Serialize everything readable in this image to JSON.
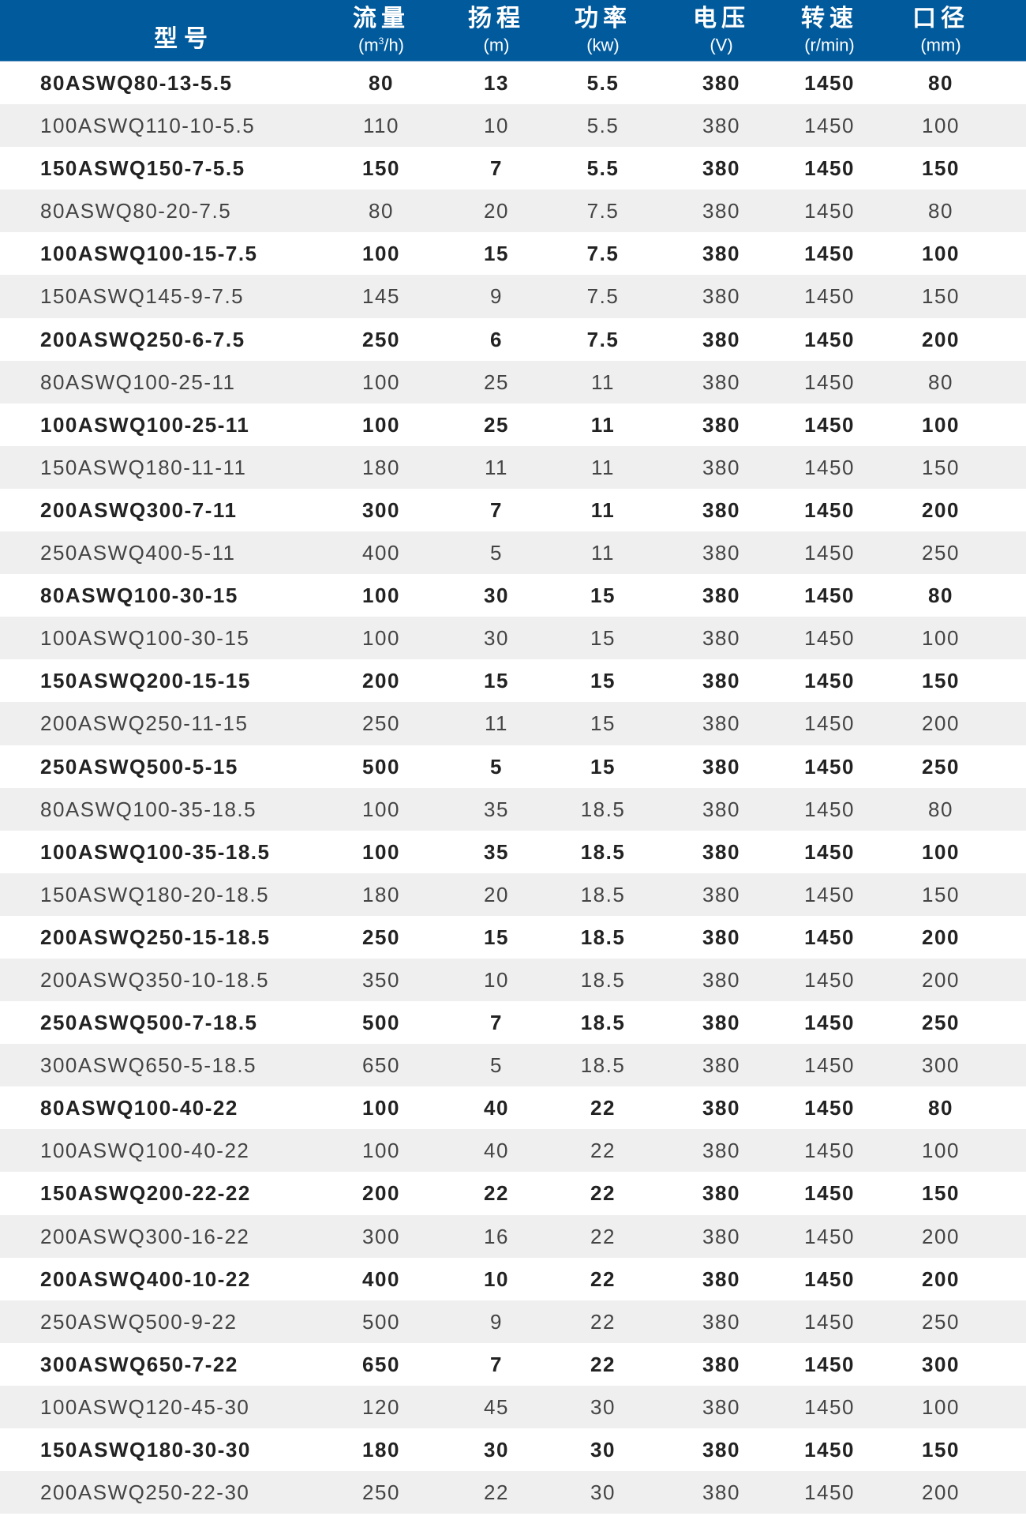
{
  "header": {
    "model": "型号",
    "columns": [
      {
        "zh": "流量",
        "unit_pre": "(m",
        "unit_sup": "3",
        "unit_post": "/h)"
      },
      {
        "zh": "扬程",
        "unit_pre": "(m)",
        "unit_sup": "",
        "unit_post": ""
      },
      {
        "zh": "功率",
        "unit_pre": "(kw)",
        "unit_sup": "",
        "unit_post": ""
      },
      {
        "zh": "电压",
        "unit_pre": "(V)",
        "unit_sup": "",
        "unit_post": ""
      },
      {
        "zh": "转速",
        "unit_pre": "(r/min)",
        "unit_sup": "",
        "unit_post": ""
      },
      {
        "zh": "口径",
        "unit_pre": "(mm)",
        "unit_sup": "",
        "unit_post": ""
      }
    ],
    "color": "#005a9c"
  },
  "rows": [
    [
      "80ASWQ80-13-5.5",
      "80",
      "13",
      "5.5",
      "380",
      "1450",
      "80"
    ],
    [
      "100ASWQ110-10-5.5",
      "110",
      "10",
      "5.5",
      "380",
      "1450",
      "100"
    ],
    [
      "150ASWQ150-7-5.5",
      "150",
      "7",
      "5.5",
      "380",
      "1450",
      "150"
    ],
    [
      "80ASWQ80-20-7.5",
      "80",
      "20",
      "7.5",
      "380",
      "1450",
      "80"
    ],
    [
      "100ASWQ100-15-7.5",
      "100",
      "15",
      "7.5",
      "380",
      "1450",
      "100"
    ],
    [
      "150ASWQ145-9-7.5",
      "145",
      "9",
      "7.5",
      "380",
      "1450",
      "150"
    ],
    [
      "200ASWQ250-6-7.5",
      "250",
      "6",
      "7.5",
      "380",
      "1450",
      "200"
    ],
    [
      "80ASWQ100-25-11",
      "100",
      "25",
      "11",
      "380",
      "1450",
      "80"
    ],
    [
      "100ASWQ100-25-11",
      "100",
      "25",
      "11",
      "380",
      "1450",
      "100"
    ],
    [
      "150ASWQ180-11-11",
      "180",
      "11",
      "11",
      "380",
      "1450",
      "150"
    ],
    [
      "200ASWQ300-7-11",
      "300",
      "7",
      "11",
      "380",
      "1450",
      "200"
    ],
    [
      "250ASWQ400-5-11",
      "400",
      "5",
      "11",
      "380",
      "1450",
      "250"
    ],
    [
      "80ASWQ100-30-15",
      "100",
      "30",
      "15",
      "380",
      "1450",
      "80"
    ],
    [
      "100ASWQ100-30-15",
      "100",
      "30",
      "15",
      "380",
      "1450",
      "100"
    ],
    [
      "150ASWQ200-15-15",
      "200",
      "15",
      "15",
      "380",
      "1450",
      "150"
    ],
    [
      "200ASWQ250-11-15",
      "250",
      "11",
      "15",
      "380",
      "1450",
      "200"
    ],
    [
      "250ASWQ500-5-15",
      "500",
      "5",
      "15",
      "380",
      "1450",
      "250"
    ],
    [
      "80ASWQ100-35-18.5",
      "100",
      "35",
      "18.5",
      "380",
      "1450",
      "80"
    ],
    [
      "100ASWQ100-35-18.5",
      "100",
      "35",
      "18.5",
      "380",
      "1450",
      "100"
    ],
    [
      "150ASWQ180-20-18.5",
      "180",
      "20",
      "18.5",
      "380",
      "1450",
      "150"
    ],
    [
      "200ASWQ250-15-18.5",
      "250",
      "15",
      "18.5",
      "380",
      "1450",
      "200"
    ],
    [
      "200ASWQ350-10-18.5",
      "350",
      "10",
      "18.5",
      "380",
      "1450",
      "200"
    ],
    [
      "250ASWQ500-7-18.5",
      "500",
      "7",
      "18.5",
      "380",
      "1450",
      "250"
    ],
    [
      "300ASWQ650-5-18.5",
      "650",
      "5",
      "18.5",
      "380",
      "1450",
      "300"
    ],
    [
      "80ASWQ100-40-22",
      "100",
      "40",
      "22",
      "380",
      "1450",
      "80"
    ],
    [
      "100ASWQ100-40-22",
      "100",
      "40",
      "22",
      "380",
      "1450",
      "100"
    ],
    [
      "150ASWQ200-22-22",
      "200",
      "22",
      "22",
      "380",
      "1450",
      "150"
    ],
    [
      "200ASWQ300-16-22",
      "300",
      "16",
      "22",
      "380",
      "1450",
      "200"
    ],
    [
      "200ASWQ400-10-22",
      "400",
      "10",
      "22",
      "380",
      "1450",
      "200"
    ],
    [
      "250ASWQ500-9-22",
      "500",
      "9",
      "22",
      "380",
      "1450",
      "250"
    ],
    [
      "300ASWQ650-7-22",
      "650",
      "7",
      "22",
      "380",
      "1450",
      "300"
    ],
    [
      "100ASWQ120-45-30",
      "120",
      "45",
      "30",
      "380",
      "1450",
      "100"
    ],
    [
      "150ASWQ180-30-30",
      "180",
      "30",
      "30",
      "380",
      "1450",
      "150"
    ],
    [
      "200ASWQ250-22-30",
      "250",
      "22",
      "30",
      "380",
      "1450",
      "200"
    ]
  ]
}
